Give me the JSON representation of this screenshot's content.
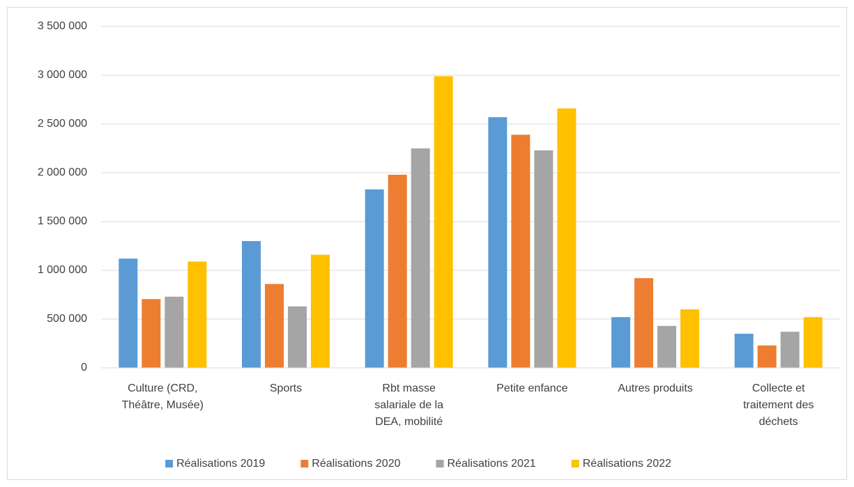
{
  "chart_data": {
    "type": "bar",
    "categories": [
      "Culture (CRD, Théâtre, Musée)",
      "Sports",
      "Rbt masse salariale de la DEA, mobilité",
      "Petite enfance",
      "Autres produits",
      "Collecte et traitement des déchets"
    ],
    "series": [
      {
        "name": "Réalisations 2019",
        "color": "#5b9bd5",
        "values": [
          1120000,
          1300000,
          1830000,
          2570000,
          520000,
          350000
        ]
      },
      {
        "name": "Réalisations 2020",
        "color": "#ed7d31",
        "values": [
          705000,
          860000,
          1980000,
          2390000,
          920000,
          230000
        ]
      },
      {
        "name": "Réalisations 2021",
        "color": "#a5a5a5",
        "values": [
          730000,
          630000,
          2250000,
          2230000,
          430000,
          370000
        ]
      },
      {
        "name": "Réalisations 2022",
        "color": "#ffc000",
        "values": [
          1090000,
          1160000,
          2990000,
          2660000,
          600000,
          520000
        ]
      }
    ],
    "ylim": [
      0,
      3500000
    ],
    "yticks": [
      0,
      {
        "value": 500000,
        "label": "500 000"
      },
      {
        "value": 1000000,
        "label": "1 000 000"
      },
      {
        "value": 1500000,
        "label": "1 500 000"
      },
      {
        "value": 2000000,
        "label": "2 000 000"
      },
      {
        "value": 2500000,
        "label": "2 500 000"
      },
      {
        "value": 3000000,
        "label": "3 000 000"
      },
      {
        "value": 3500000,
        "label": "3 500 000"
      }
    ],
    "grid": true,
    "legend": "bottom"
  }
}
